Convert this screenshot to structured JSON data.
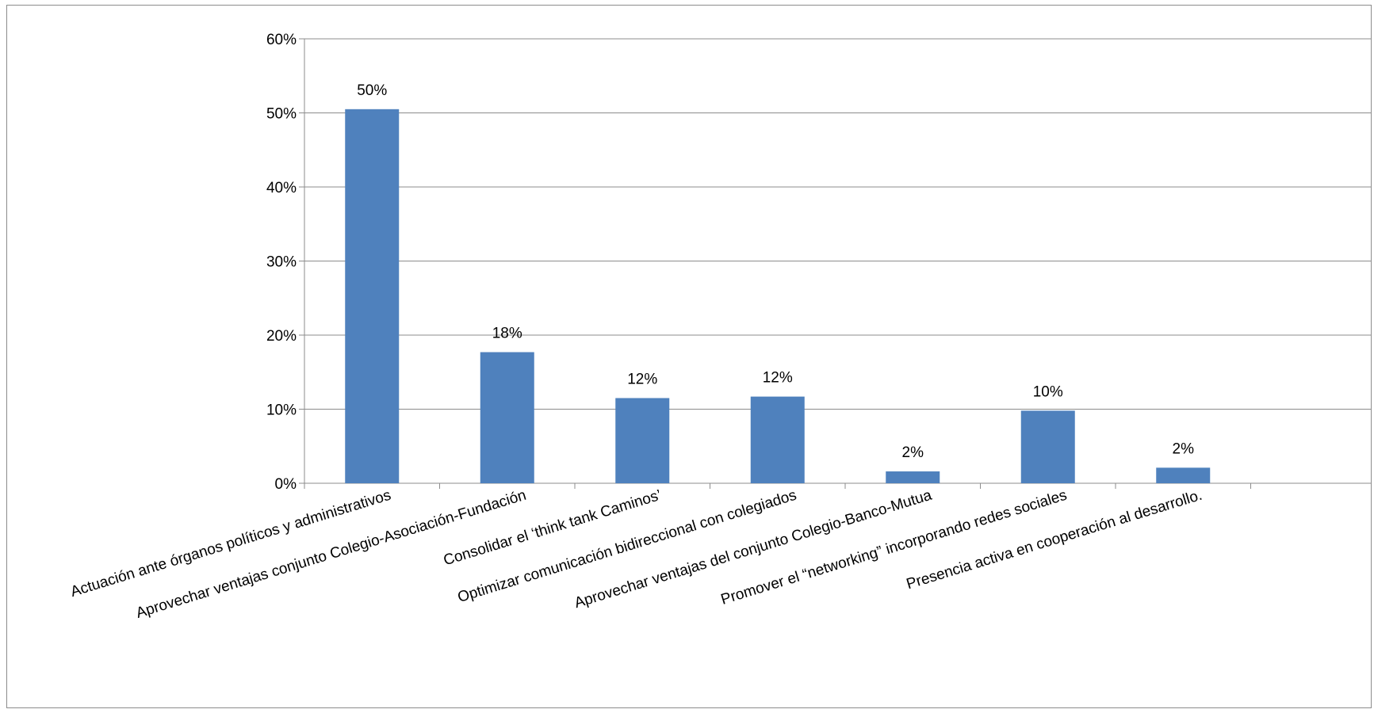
{
  "chart_data": {
    "type": "bar",
    "title": "",
    "xlabel": "",
    "ylabel": "",
    "categories": [
      "Actuación ante órganos políticos y administrativos",
      "Aprovechar ventajas conjunto Colegio-Asociación-Fundación",
      "Consolidar el ‘think tank Caminos’",
      "Optimizar comunicación bidireccional con colegiados",
      "Aprovechar ventajas del conjunto Colegio-Banco-Mutua",
      "Promover el “networking” incorporando redes sociales",
      "Presencia activa en cooperación al desarrollo."
    ],
    "values": [
      50.5,
      17.7,
      11.5,
      11.7,
      1.6,
      9.8,
      2.1
    ],
    "data_labels": [
      "50%",
      "18%",
      "12%",
      "12%",
      "2%",
      "10%",
      "2%"
    ],
    "ylim": [
      0,
      60
    ],
    "y_ticks": [
      0,
      10,
      20,
      30,
      40,
      50,
      60
    ],
    "y_tick_labels": [
      "0%",
      "10%",
      "20%",
      "30%",
      "40%",
      "50%",
      "60%"
    ],
    "grid": true,
    "legend": "none",
    "bar_color": "#4f81bd"
  }
}
